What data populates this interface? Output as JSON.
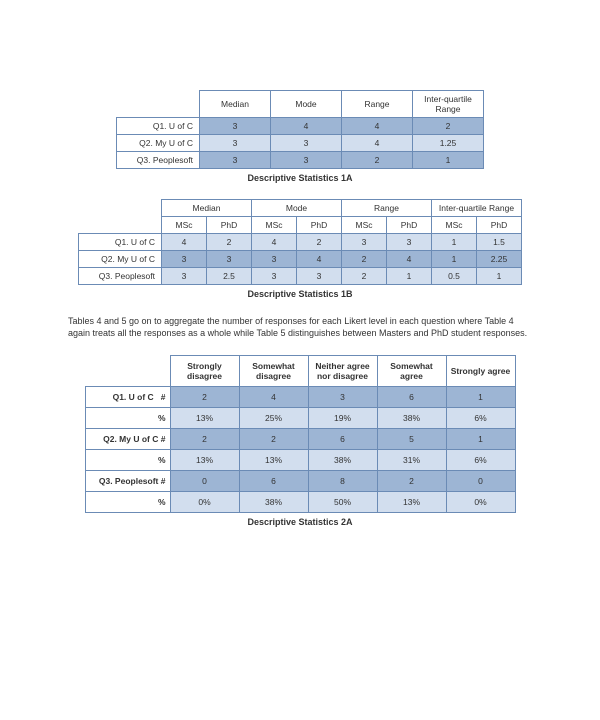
{
  "table1A": {
    "caption": "Descriptive Statistics 1A",
    "cols": [
      "Median",
      "Mode",
      "Range",
      "Inter-quartile Range"
    ],
    "rows": [
      {
        "label": "Q1. U of C",
        "vals": [
          "3",
          "4",
          "4",
          "2"
        ],
        "shade": "md"
      },
      {
        "label": "Q2. My U of C",
        "vals": [
          "3",
          "3",
          "4",
          "1.25"
        ],
        "shade": "lt"
      },
      {
        "label": "Q3. Peoplesoft",
        "vals": [
          "3",
          "3",
          "2",
          "1"
        ],
        "shade": "md"
      }
    ]
  },
  "table1B": {
    "caption": "Descriptive Statistics 1B",
    "groups": [
      "Median",
      "Mode",
      "Range",
      "Inter-quartile Range"
    ],
    "subs": [
      "MSc",
      "PhD"
    ],
    "rows": [
      {
        "label": "Q1. U of C",
        "vals": [
          "4",
          "2",
          "4",
          "2",
          "3",
          "3",
          "1",
          "1.5"
        ],
        "shade": "lt"
      },
      {
        "label": "Q2. My U of C",
        "vals": [
          "3",
          "3",
          "3",
          "4",
          "2",
          "4",
          "1",
          "2.25"
        ],
        "shade": "md"
      },
      {
        "label": "Q3. Peoplesoft",
        "vals": [
          "3",
          "2.5",
          "3",
          "3",
          "2",
          "1",
          "0.5",
          "1"
        ],
        "shade": "lt"
      }
    ]
  },
  "paragraph": "Tables 4 and 5 go on to aggregate the number of responses for each Likert level in each question where Table 4 again treats all the responses as a whole while Table 5 distinguishes between Masters and PhD student responses.",
  "table2A": {
    "caption": "Descriptive Statistics 2A",
    "cols": [
      "Strongly disagree",
      "Somewhat disagree",
      "Neither agree nor disagree",
      "Somewhat agree",
      "Strongly agree"
    ],
    "rows": [
      {
        "label": "Q1. U of C",
        "sub1": "#",
        "sub2": "%",
        "r1": [
          "2",
          "4",
          "3",
          "6",
          "1"
        ],
        "r2": [
          "13%",
          "25%",
          "19%",
          "38%",
          "6%"
        ]
      },
      {
        "label": "Q2. My U of C",
        "sub1": "#",
        "sub2": "%",
        "r1": [
          "2",
          "2",
          "6",
          "5",
          "1"
        ],
        "r2": [
          "13%",
          "13%",
          "38%",
          "31%",
          "6%"
        ]
      },
      {
        "label": "Q3. Peoplesoft",
        "sub1": "#",
        "sub2": "%",
        "r1": [
          "0",
          "6",
          "8",
          "2",
          "0"
        ],
        "r2": [
          "0%",
          "38%",
          "50%",
          "13%",
          "0%"
        ]
      }
    ]
  },
  "colors": {
    "border": "#6b8bb5",
    "light": "#d2deee",
    "medium": "#9db5d4"
  }
}
